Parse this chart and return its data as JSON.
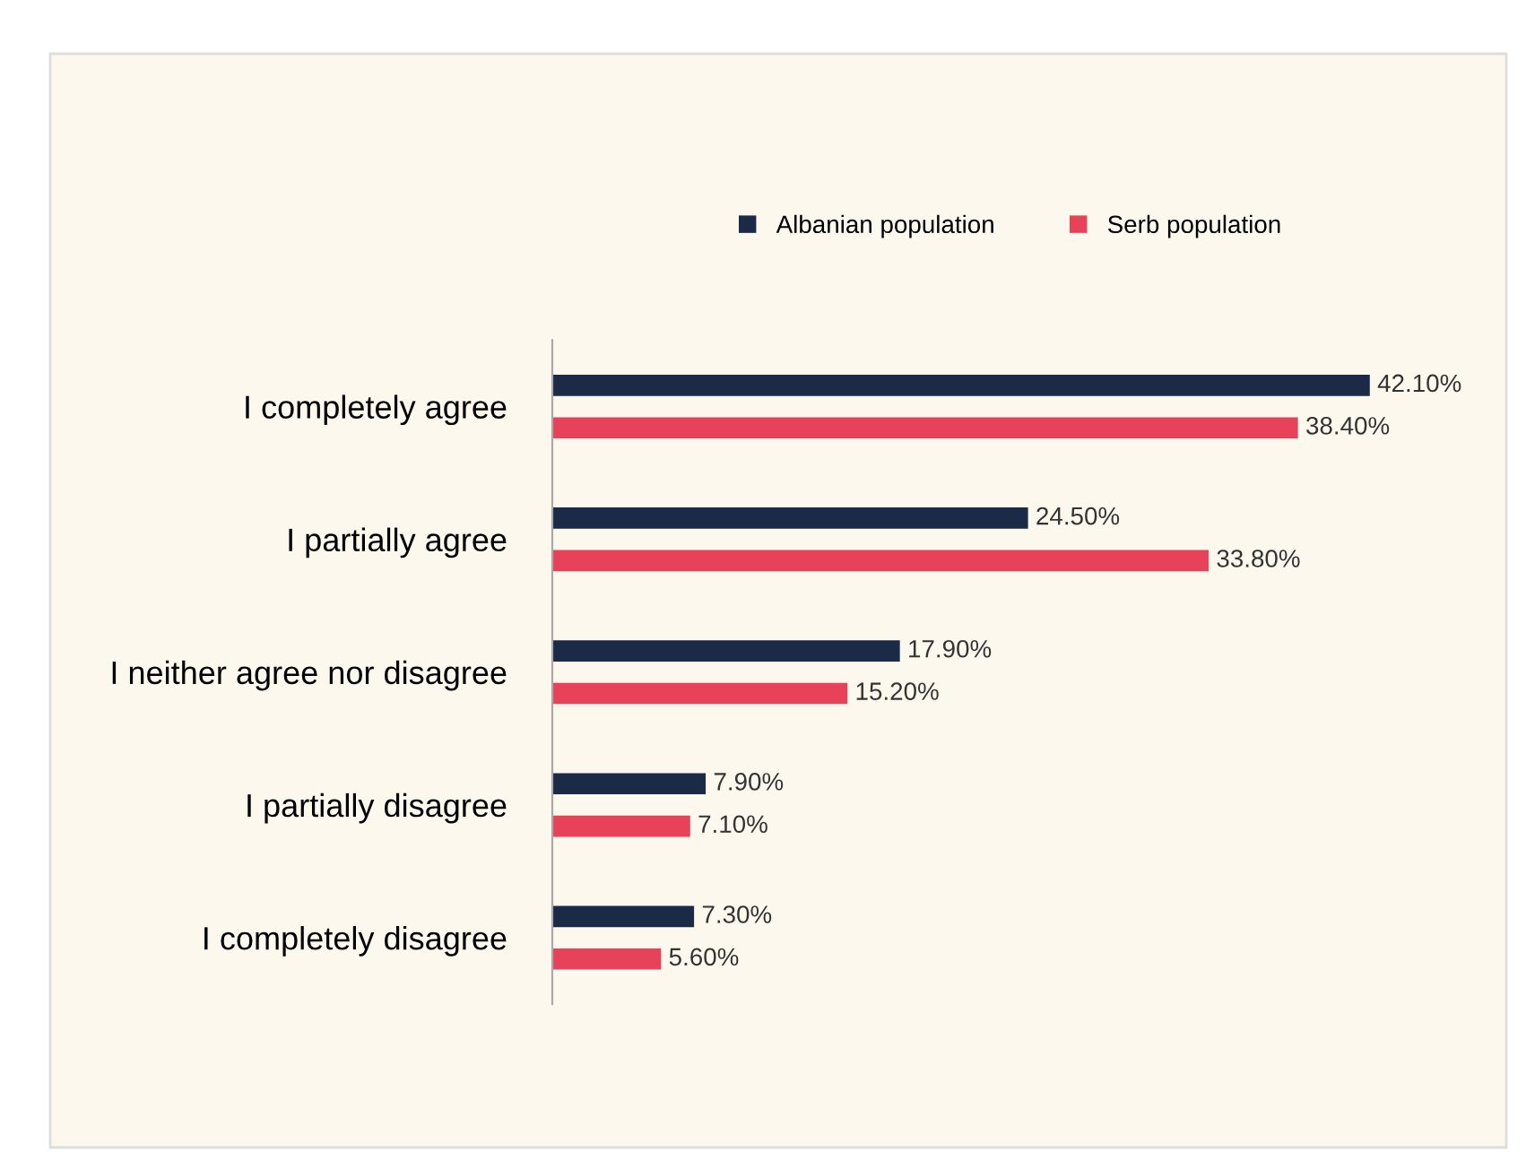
{
  "chart_data": {
    "type": "bar",
    "orientation": "horizontal",
    "legend": "top",
    "tick_labels": "y",
    "categories": [
      "I completely agree",
      "I partially agree",
      "I neither agree nor disagree",
      "I partially disagree",
      "I completely disagree"
    ],
    "series": [
      {
        "name": "Albanian population",
        "color": "#1b2a47",
        "values": [
          42.1,
          24.5,
          17.9,
          7.9,
          7.3
        ],
        "value_labels": [
          "42.10%",
          "24.50%",
          "17.90%",
          "7.90%",
          "7.30%"
        ]
      },
      {
        "name": "Serb population",
        "color": "#e8415a",
        "values": [
          38.4,
          33.8,
          15.2,
          7.1,
          5.6
        ],
        "value_labels": [
          "38.40%",
          "33.80%",
          "15.20%",
          "7.10%",
          "5.60%"
        ]
      }
    ]
  }
}
